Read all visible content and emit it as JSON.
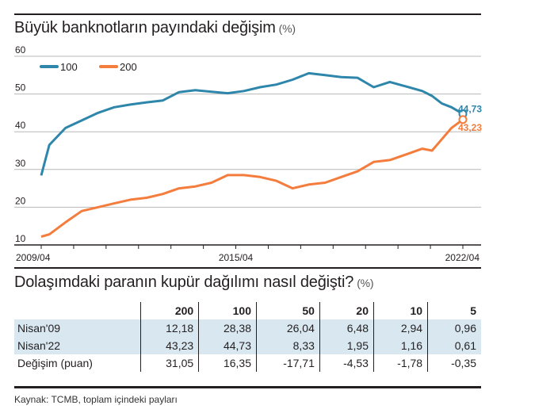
{
  "chart_title": "Büyük banknotların payındaki değişim",
  "chart_unit": "(%)",
  "chart_data": {
    "type": "line",
    "title": "Büyük banknotların payındaki değişim",
    "ylim": [
      10,
      60
    ],
    "yticks": [
      "60",
      "50",
      "40",
      "30",
      "20",
      "10"
    ],
    "xtick_labels": [
      "2009/04",
      "2015/04",
      "2022/04"
    ],
    "legend": "top-left",
    "grid": true,
    "end_labels": [
      "44,73",
      "43,23"
    ],
    "series": [
      {
        "name": "100",
        "color": "#2e86ab",
        "x": [
          2009.25,
          2009.5,
          2010.0,
          2010.5,
          2011.0,
          2011.5,
          2012.0,
          2012.5,
          2013.0,
          2013.5,
          2014.0,
          2014.5,
          2015.0,
          2015.5,
          2016.0,
          2016.5,
          2017.0,
          2017.5,
          2018.0,
          2018.5,
          2019.0,
          2019.5,
          2020.0,
          2020.5,
          2021.0,
          2021.3,
          2021.6,
          2021.9,
          2022.25
        ],
        "y": [
          28.4,
          36.5,
          41.0,
          43.0,
          45.0,
          46.5,
          47.2,
          47.8,
          48.3,
          50.5,
          51.0,
          50.6,
          50.2,
          50.8,
          51.8,
          52.5,
          53.8,
          55.5,
          55.0,
          54.5,
          54.3,
          51.8,
          53.2,
          52.0,
          50.8,
          49.5,
          47.5,
          46.5,
          44.73
        ]
      },
      {
        "name": "200",
        "color": "#f47c3c",
        "x": [
          2009.25,
          2009.5,
          2010.0,
          2010.5,
          2011.0,
          2011.5,
          2012.0,
          2012.5,
          2013.0,
          2013.5,
          2014.0,
          2014.5,
          2015.0,
          2015.5,
          2016.0,
          2016.5,
          2017.0,
          2017.5,
          2018.0,
          2018.5,
          2019.0,
          2019.5,
          2020.0,
          2020.5,
          2021.0,
          2021.3,
          2021.6,
          2021.9,
          2022.25
        ],
        "y": [
          12.2,
          12.8,
          16.0,
          19.0,
          20.0,
          21.0,
          22.0,
          22.5,
          23.5,
          25.0,
          25.5,
          26.5,
          28.5,
          28.5,
          28.0,
          27.0,
          25.0,
          26.0,
          26.5,
          28.0,
          29.5,
          32.0,
          32.5,
          34.0,
          35.5,
          35.0,
          38.0,
          41.0,
          43.23
        ]
      }
    ]
  },
  "table_title": "Dolaşımdaki paranın kupür dağılımı nasıl değişti?",
  "table_unit": "(%)",
  "table": {
    "headers": [
      "",
      "200",
      "100",
      "50",
      "20",
      "10",
      "5"
    ],
    "rows": [
      {
        "label": "Nisan'09",
        "values": [
          "12,18",
          "28,38",
          "26,04",
          "6,48",
          "2,94",
          "0,96"
        ]
      },
      {
        "label": "Nisan'22",
        "values": [
          "43,23",
          "44,73",
          "8,33",
          "1,95",
          "1,16",
          "0,61"
        ]
      },
      {
        "label": "Değişim (puan)",
        "values": [
          "31,05",
          "16,35",
          "-17,71",
          "-4,53",
          "-1,78",
          "-0,35"
        ]
      }
    ]
  },
  "source": "Kaynak: TCMB, toplam içindeki payları"
}
